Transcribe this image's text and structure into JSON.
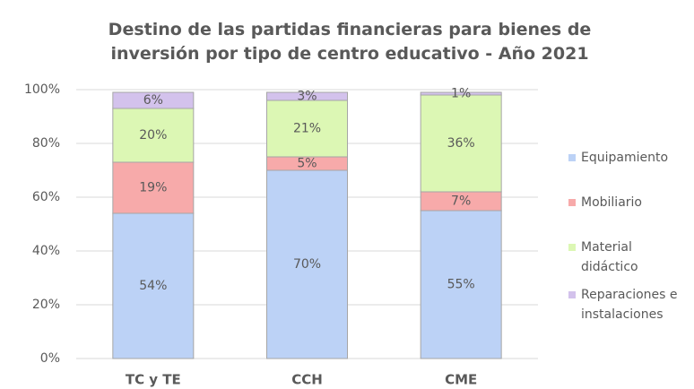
{
  "chart_data": {
    "type": "stacked_bar",
    "title": "Destino de las partidas financieras para bienes de inversión por tipo de centro educativo - Año 2021",
    "categories": [
      "TC y TE",
      "CCH",
      "CME"
    ],
    "series": [
      {
        "name": "Equipamiento",
        "color": "#bcd2f6",
        "values": [
          54,
          70,
          55
        ],
        "value_labels": [
          "54%",
          "70%",
          "55%"
        ]
      },
      {
        "name": "Mobiliario",
        "color": "#f7aaaa",
        "values": [
          19,
          5,
          7
        ],
        "value_labels": [
          "19%",
          "5%",
          "7%"
        ]
      },
      {
        "name": "Material didáctico",
        "color": "#dcf7b4",
        "values": [
          20,
          21,
          36
        ],
        "value_labels": [
          "20%",
          "21%",
          "36%"
        ]
      },
      {
        "name": "Reparaciones e instalaciones",
        "color": "#d3c2ec",
        "values": [
          6,
          3,
          1
        ],
        "value_labels": [
          "6%",
          "3%",
          "1%"
        ]
      }
    ],
    "ylim": [
      0,
      100
    ],
    "yticks": [
      {
        "value": 0,
        "label": "0%"
      },
      {
        "value": 20,
        "label": "20%"
      },
      {
        "value": 40,
        "label": "40%"
      },
      {
        "value": 60,
        "label": "60%"
      },
      {
        "value": 80,
        "label": "80%"
      },
      {
        "value": 100,
        "label": "100%"
      }
    ],
    "grid": true,
    "legend": "right"
  }
}
